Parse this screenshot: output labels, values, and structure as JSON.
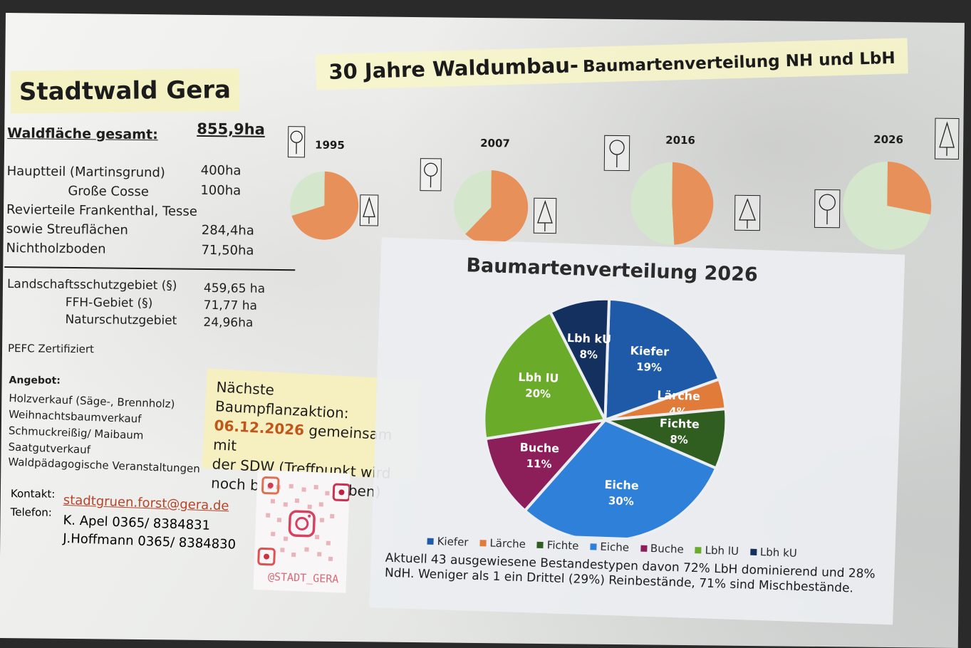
{
  "poster": {
    "title": "Stadtwald Gera",
    "main_title": "30 Jahre Waldumbau-",
    "main_subtitle": "Baumartenverteilung NH und LbH"
  },
  "area": {
    "total_label": "Waldfläche gesamt:",
    "total_value": "855,9ha",
    "rows": [
      {
        "label": "Hauptteil (Martinsgrund)",
        "value": "400ha"
      },
      {
        "label": "Große Cosse",
        "value": "100ha"
      },
      {
        "label": "Revierteile Frankenthal, Tesse",
        "value": ""
      },
      {
        "label": "sowie Streuflächen",
        "value": "284,4ha"
      },
      {
        "label": "Nichtholzboden",
        "value": "71,50ha"
      }
    ],
    "protection": [
      {
        "label": "Landschaftsschutzgebiet (§)",
        "value": "459,65 ha"
      },
      {
        "label": "FFH-Gebiet (§)",
        "value": "71,77 ha"
      },
      {
        "label": "Naturschutzgebiet",
        "value": "24,96ha"
      }
    ],
    "pefc": "PEFC Zertifiziert"
  },
  "offer": {
    "heading": "Angebot:",
    "items": [
      "Holzverkauf (Säge-, Brennholz)",
      "Weihnachtsbaumverkauf",
      "Schmuckreißig/ Maibaum",
      "Saatgutverkauf",
      "Waldpädagogische Veranstaltungen"
    ]
  },
  "contact": {
    "kontakt_label": "Kontakt:",
    "telefon_label": "Telefon:",
    "email": "stadtgruen.forst@gera.de",
    "phone1": "K. Apel 0365/ 8384831",
    "phone2": "J.Hoffmann 0365/ 8384830"
  },
  "note": {
    "line1": "Nächste Baumpflanzaktion:",
    "date": "06.12.2026",
    "line2_rest": " gemeinsam mit",
    "line3": "der SDW (Treffpunkt wird",
    "line4": "noch bekannt gegeben)"
  },
  "instagram": {
    "handle": "@STADT_GERA"
  },
  "colors": {
    "Kiefer": "#1f5aa8",
    "Lärche": "#e07b3a",
    "Fichte": "#2f5e20",
    "Eiche": "#2f80d8",
    "Buche": "#8c1e5a",
    "Lbh lU": "#6aab2a",
    "Lbh kU": "#14305e",
    "NH": "#e8905a",
    "LbH": "#d4e6cc"
  },
  "chart_data": [
    {
      "type": "pie",
      "title": "1995",
      "series": [
        {
          "name": "LbH",
          "value": 30
        },
        {
          "name": "NH",
          "value": 70
        }
      ]
    },
    {
      "type": "pie",
      "title": "2007",
      "series": [
        {
          "name": "LbH",
          "value": 38
        },
        {
          "name": "NH",
          "value": 62
        }
      ]
    },
    {
      "type": "pie",
      "title": "2016",
      "series": [
        {
          "name": "LbH",
          "value": 51
        },
        {
          "name": "NH",
          "value": 49
        }
      ]
    },
    {
      "type": "pie",
      "title": "2026",
      "series": [
        {
          "name": "LbH",
          "value": 72
        },
        {
          "name": "NH",
          "value": 28
        }
      ]
    },
    {
      "type": "pie",
      "title": "Baumartenverteilung 2026",
      "categories": [
        "Kiefer",
        "Lärche",
        "Fichte",
        "Eiche",
        "Buche",
        "Lbh lU",
        "Lbh kU"
      ],
      "values": [
        19,
        4,
        8,
        30,
        11,
        20,
        8
      ],
      "labels": [
        "19%",
        "4%",
        "8%",
        "30%",
        "11%",
        "20%",
        "8%"
      ],
      "legend": "bottom"
    }
  ],
  "caption": "Aktuell 43 ausgewiesene Bestandestypen davon 72% LbH dominierend und 28% NdH. Weniger als 1 ein Drittel (29%) Reinbestände, 71% sind Mischbestände."
}
